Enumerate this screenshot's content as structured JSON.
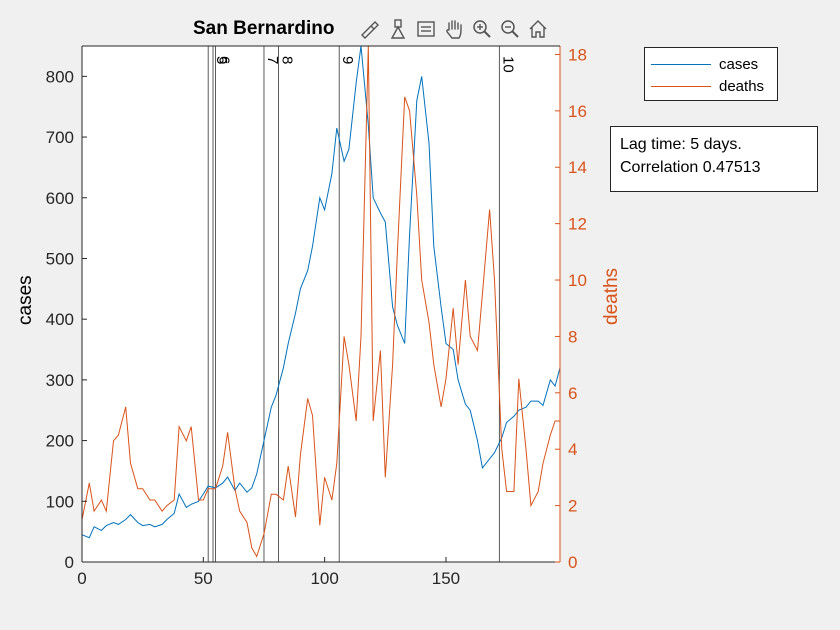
{
  "chart_data": {
    "type": "line",
    "title": "San Bernardino",
    "xlabel": "",
    "ylabel_left": "cases",
    "ylabel_right": "deaths",
    "xlim": [
      0,
      197
    ],
    "ylim_left": [
      0,
      850
    ],
    "ylim_right": [
      0,
      18.3
    ],
    "xticks": [
      0,
      50,
      100,
      150
    ],
    "yticks_left": [
      0,
      100,
      200,
      300,
      400,
      500,
      600,
      700,
      800
    ],
    "yticks_right": [
      0,
      2,
      4,
      6,
      8,
      10,
      12,
      14,
      16,
      18
    ],
    "grid": false,
    "legend_location": "outside top-right",
    "series": [
      {
        "name": "cases",
        "axis": "left",
        "color": "#0072bd",
        "x": [
          0,
          3,
          5,
          8,
          10,
          13,
          15,
          18,
          20,
          23,
          25,
          28,
          30,
          33,
          35,
          38,
          40,
          43,
          45,
          48,
          50,
          52,
          55,
          58,
          60,
          63,
          65,
          68,
          70,
          72,
          75,
          78,
          80,
          83,
          85,
          88,
          90,
          93,
          95,
          98,
          100,
          103,
          105,
          108,
          110,
          113,
          115,
          118,
          120,
          123,
          125,
          128,
          130,
          133,
          135,
          138,
          140,
          143,
          145,
          148,
          150,
          153,
          155,
          158,
          160,
          163,
          165,
          168,
          170,
          173,
          175,
          178,
          180,
          183,
          185,
          188,
          190,
          193,
          195,
          197
        ],
        "values": [
          45,
          40,
          58,
          52,
          60,
          65,
          62,
          70,
          78,
          65,
          60,
          62,
          58,
          62,
          70,
          80,
          112,
          90,
          95,
          100,
          112,
          125,
          122,
          130,
          140,
          118,
          130,
          115,
          122,
          145,
          200,
          255,
          275,
          320,
          360,
          410,
          450,
          480,
          520,
          600,
          580,
          640,
          715,
          660,
          680,
          790,
          850,
          720,
          600,
          575,
          560,
          420,
          390,
          360,
          540,
          760,
          800,
          690,
          520,
          420,
          360,
          350,
          300,
          260,
          250,
          200,
          155,
          170,
          180,
          205,
          230,
          240,
          250,
          255,
          265,
          265,
          258,
          300,
          290,
          320
        ]
      },
      {
        "name": "deaths",
        "axis": "right",
        "color": "#d95319",
        "x": [
          0,
          3,
          5,
          8,
          10,
          13,
          15,
          18,
          20,
          23,
          25,
          28,
          30,
          33,
          35,
          38,
          40,
          43,
          45,
          48,
          50,
          52,
          55,
          58,
          60,
          63,
          65,
          68,
          70,
          72,
          75,
          78,
          80,
          83,
          85,
          88,
          90,
          93,
          95,
          98,
          100,
          103,
          105,
          108,
          110,
          113,
          115,
          118,
          120,
          123,
          125,
          128,
          130,
          133,
          135,
          138,
          140,
          143,
          145,
          148,
          150,
          153,
          155,
          158,
          160,
          163,
          165,
          168,
          170,
          173,
          175,
          178,
          180,
          183,
          185,
          188,
          190,
          193,
          195,
          197
        ],
        "values": [
          1.5,
          2.8,
          1.8,
          2.2,
          1.8,
          4.3,
          4.5,
          5.5,
          3.5,
          2.6,
          2.6,
          2.2,
          2.2,
          1.8,
          2.0,
          2.2,
          4.8,
          4.3,
          4.8,
          2.2,
          2.2,
          2.6,
          2.6,
          3.4,
          4.6,
          2.6,
          1.8,
          1.4,
          0.5,
          0.2,
          1.0,
          2.4,
          2.4,
          2.2,
          3.4,
          1.6,
          3.8,
          5.8,
          5.2,
          1.3,
          3.0,
          2.2,
          3.5,
          8.0,
          7.0,
          5.0,
          8.0,
          18.3,
          5.0,
          7.5,
          3.0,
          7.0,
          11.0,
          16.5,
          16.0,
          13.0,
          10.0,
          8.5,
          7.0,
          5.5,
          6.5,
          9.0,
          7.0,
          10.0,
          8.0,
          7.5,
          9.5,
          12.5,
          10.0,
          4.0,
          2.5,
          2.5,
          6.5,
          4.0,
          2.0,
          2.5,
          3.5,
          4.5,
          5.0,
          5.0
        ]
      }
    ],
    "vlines": [
      {
        "x": 52,
        "label": ""
      },
      {
        "x": 54,
        "label": "5"
      },
      {
        "x": 55,
        "label": "6"
      },
      {
        "x": 75,
        "label": "7"
      },
      {
        "x": 81,
        "label": "8"
      },
      {
        "x": 106,
        "label": "9"
      },
      {
        "x": 172,
        "label": "10"
      }
    ]
  },
  "toolbar": {
    "icons": [
      "brush-icon",
      "data-tip-icon",
      "legend-icon",
      "pan-icon",
      "zoom-in-icon",
      "zoom-out-icon",
      "home-icon"
    ]
  },
  "annotation": {
    "line1": "Lag time: 5 days.",
    "line2": "Correlation 0.47513"
  }
}
